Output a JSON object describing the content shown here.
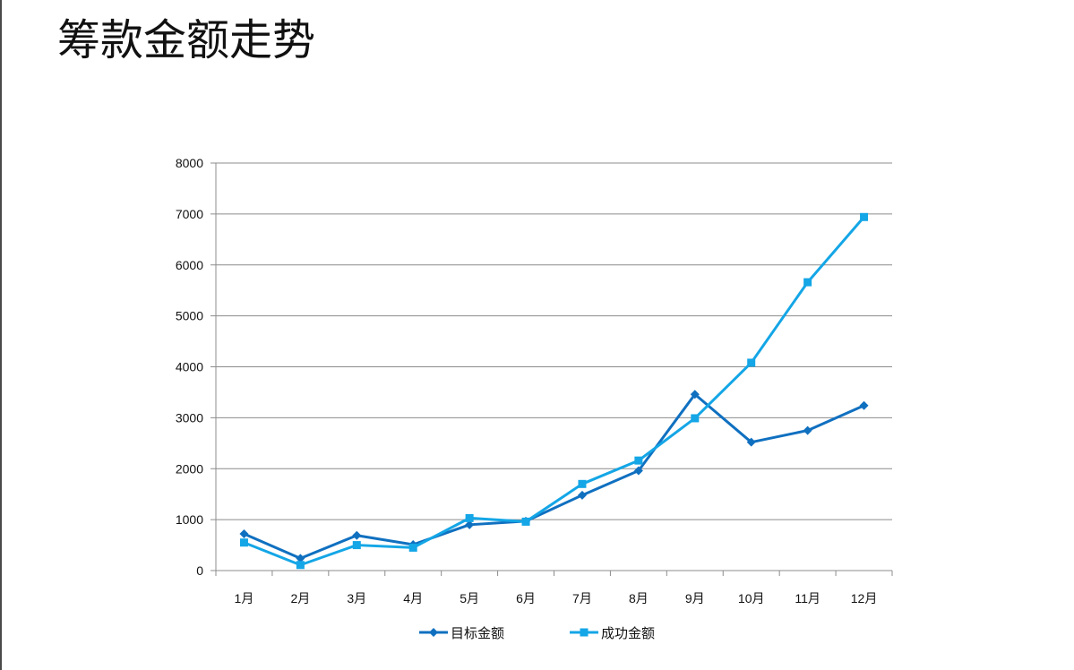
{
  "page": {
    "title": "筹款金额走势"
  },
  "chart_data": {
    "type": "line",
    "title": "筹款金额走势",
    "xlabel": "",
    "ylabel": "",
    "categories": [
      "1月",
      "2月",
      "3月",
      "4月",
      "5月",
      "6月",
      "7月",
      "8月",
      "9月",
      "10月",
      "11月",
      "12月"
    ],
    "ylim": [
      0,
      8000
    ],
    "yticks": [
      0,
      1000,
      2000,
      3000,
      4000,
      5000,
      6000,
      7000,
      8000
    ],
    "grid": true,
    "legend_position": "bottom",
    "series": [
      {
        "name": "目标金额",
        "color": "#1070c0",
        "marker": "diamond",
        "values": [
          720,
          240,
          690,
          510,
          900,
          970,
          1480,
          1960,
          3460,
          2520,
          2750,
          3240
        ]
      },
      {
        "name": "成功金额",
        "color": "#14a6e6",
        "marker": "square",
        "values": [
          550,
          110,
          500,
          450,
          1030,
          960,
          1700,
          2160,
          2990,
          4080,
          5660,
          6940
        ]
      }
    ]
  }
}
